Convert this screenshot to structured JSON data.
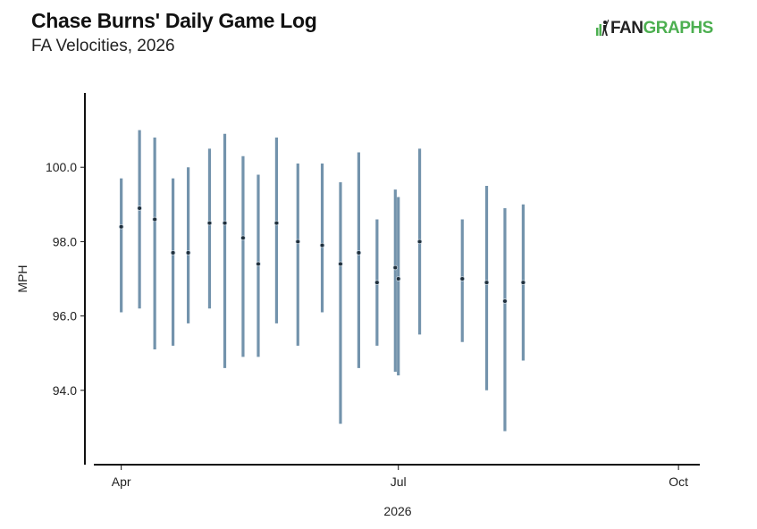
{
  "header": {
    "title": "Chase Burns' Daily Game Log",
    "subtitle": "FA Velocities, 2026"
  },
  "logo": {
    "fan": "FAN",
    "graphs": "GRAPHS",
    "icon": "baseball-player-icon"
  },
  "colors": {
    "range_bar": "#7393ac",
    "point_fill": "#1f2f3c",
    "point_stroke": "#c8d4de",
    "axis": "#111111",
    "logo_green": "#4caf50"
  },
  "chart_data": {
    "type": "scatter",
    "xlabel": "2026",
    "ylabel": "MPH",
    "x_ticks": [
      {
        "date": "2026-04-01",
        "label": "Apr"
      },
      {
        "date": "2026-07-01",
        "label": "Jul"
      },
      {
        "date": "2026-10-01",
        "label": "Oct"
      }
    ],
    "xlim": [
      "2026-03-23",
      "2026-10-08"
    ],
    "y_ticks": [
      94.0,
      96.0,
      98.0,
      100.0
    ],
    "y_tick_labels": [
      "94.0",
      "96.0",
      "98.0",
      "100.0"
    ],
    "ylim": [
      92.0,
      102.0
    ],
    "grid": false,
    "points": [
      {
        "date": "2026-04-01",
        "avg": 98.4,
        "min": 96.1,
        "max": 99.7
      },
      {
        "date": "2026-04-07",
        "avg": 98.9,
        "min": 96.2,
        "max": 101.0
      },
      {
        "date": "2026-04-12",
        "avg": 98.6,
        "min": 95.1,
        "max": 100.8
      },
      {
        "date": "2026-04-18",
        "avg": 97.7,
        "min": 95.2,
        "max": 99.7
      },
      {
        "date": "2026-04-23",
        "avg": 97.7,
        "min": 95.8,
        "max": 100.0
      },
      {
        "date": "2026-04-30",
        "avg": 98.5,
        "min": 96.2,
        "max": 100.5
      },
      {
        "date": "2026-05-05",
        "avg": 98.5,
        "min": 94.6,
        "max": 100.9
      },
      {
        "date": "2026-05-11",
        "avg": 98.1,
        "min": 94.9,
        "max": 100.3
      },
      {
        "date": "2026-05-16",
        "avg": 97.4,
        "min": 94.9,
        "max": 99.8
      },
      {
        "date": "2026-05-22",
        "avg": 98.5,
        "min": 95.8,
        "max": 100.8
      },
      {
        "date": "2026-05-29",
        "avg": 98.0,
        "min": 95.2,
        "max": 100.1
      },
      {
        "date": "2026-06-06",
        "avg": 97.9,
        "min": 96.1,
        "max": 100.1
      },
      {
        "date": "2026-06-12",
        "avg": 97.4,
        "min": 93.1,
        "max": 99.6
      },
      {
        "date": "2026-06-18",
        "avg": 97.7,
        "min": 94.6,
        "max": 100.4
      },
      {
        "date": "2026-06-24",
        "avg": 96.9,
        "min": 95.2,
        "max": 98.6
      },
      {
        "date": "2026-06-30",
        "avg": 97.3,
        "min": 94.5,
        "max": 99.4
      },
      {
        "date": "2026-07-01",
        "avg": 97.0,
        "min": 94.4,
        "max": 99.2
      },
      {
        "date": "2026-07-08",
        "avg": 98.0,
        "min": 95.5,
        "max": 100.5
      },
      {
        "date": "2026-07-22",
        "avg": 97.0,
        "min": 95.3,
        "max": 98.6
      },
      {
        "date": "2026-07-30",
        "avg": 96.9,
        "min": 94.0,
        "max": 99.5
      },
      {
        "date": "2026-08-05",
        "avg": 96.4,
        "min": 92.9,
        "max": 98.9
      },
      {
        "date": "2026-08-11",
        "avg": 96.9,
        "min": 94.8,
        "max": 99.0
      }
    ]
  }
}
